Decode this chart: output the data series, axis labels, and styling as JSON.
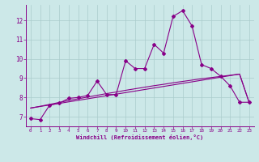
{
  "xlabel": "Windchill (Refroidissement éolien,°C)",
  "bg_color": "#cce8e8",
  "line_color": "#880088",
  "grid_color": "#aacccc",
  "x_data": [
    0,
    1,
    2,
    3,
    4,
    5,
    6,
    7,
    8,
    9,
    10,
    11,
    12,
    13,
    14,
    15,
    16,
    17,
    18,
    19,
    20,
    21,
    22,
    23
  ],
  "y_jagged": [
    6.9,
    6.85,
    7.6,
    7.7,
    7.95,
    8.0,
    8.1,
    8.85,
    8.15,
    8.15,
    9.9,
    9.5,
    9.5,
    10.75,
    10.3,
    12.2,
    12.5,
    11.7,
    9.7,
    9.5,
    9.1,
    8.6,
    7.75,
    7.75
  ],
  "y_line1": [
    7.45,
    7.53,
    7.61,
    7.69,
    7.77,
    7.85,
    7.93,
    8.01,
    8.09,
    8.17,
    8.25,
    8.33,
    8.41,
    8.49,
    8.57,
    8.65,
    8.73,
    8.81,
    8.89,
    8.97,
    9.05,
    9.13,
    9.21,
    7.75
  ],
  "y_line2": [
    7.45,
    7.54,
    7.64,
    7.74,
    7.84,
    7.93,
    8.02,
    8.11,
    8.2,
    8.28,
    8.37,
    8.45,
    8.53,
    8.61,
    8.68,
    8.76,
    8.83,
    8.9,
    8.97,
    9.03,
    9.09,
    9.15,
    9.21,
    7.75
  ],
  "ylim": [
    6.5,
    12.8
  ],
  "xlim": [
    -0.5,
    23.5
  ],
  "yticks": [
    7,
    8,
    9,
    10,
    11,
    12
  ],
  "xticks": [
    0,
    1,
    2,
    3,
    4,
    5,
    6,
    7,
    8,
    9,
    10,
    11,
    12,
    13,
    14,
    15,
    16,
    17,
    18,
    19,
    20,
    21,
    22,
    23
  ]
}
